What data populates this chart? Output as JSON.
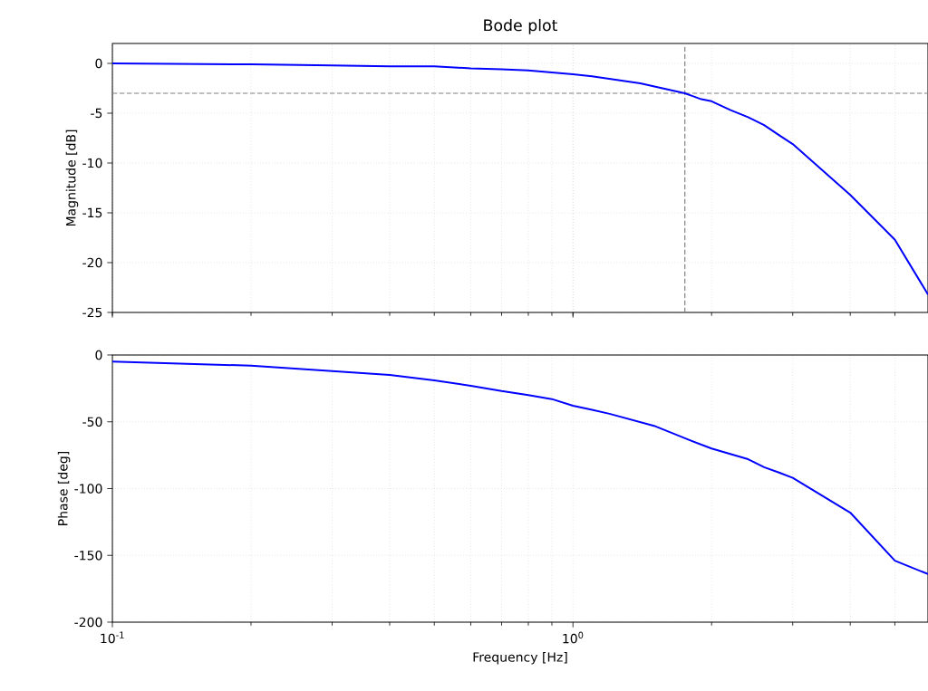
{
  "chart_data": [
    {
      "type": "line",
      "title": "Bode plot",
      "ylabel": "Magnitude [dB]",
      "log": "x",
      "grid": true,
      "tick_labels": "y",
      "xlim": [
        0.1,
        5.9
      ],
      "ylim": [
        -25,
        2
      ],
      "yticks": [
        0,
        -5,
        -10,
        -15,
        -20,
        -25
      ],
      "x": [
        0.1,
        0.2,
        0.3,
        0.4,
        0.5,
        0.6,
        0.7,
        0.8,
        0.9,
        1.0,
        1.1,
        1.4,
        1.75,
        1.9,
        2.0,
        2.2,
        2.4,
        2.6,
        2.8,
        3.0,
        4.0,
        5.0,
        5.9
      ],
      "values": [
        0,
        -0.1,
        -0.2,
        -0.3,
        -0.3,
        -0.5,
        -0.6,
        -0.7,
        -0.9,
        -1.1,
        -1.3,
        -2.0,
        -3.0,
        -3.6,
        -3.8,
        -4.7,
        -5.4,
        -6.2,
        -7.2,
        -8.1,
        -13.2,
        -17.7,
        -23.2
      ],
      "color": "#0000ff",
      "ref_lines": [
        {
          "axis": "y",
          "value": -3,
          "color": "#808080",
          "line_style": "dashed"
        },
        {
          "axis": "x",
          "value": 1.75,
          "color": "#808080",
          "line_style": "dashed"
        }
      ]
    },
    {
      "type": "line",
      "ylabel": "Phase [deg]",
      "xlabel": "Frequency [Hz]",
      "log": "x",
      "grid": true,
      "xlim": [
        0.1,
        5.9
      ],
      "xticks": [
        {
          "value": 0.1,
          "label": "10$^{-1}$"
        },
        {
          "value": 1,
          "label": "10$^{0}$"
        }
      ],
      "ylim": [
        -200,
        0
      ],
      "yticks": [
        0,
        -50,
        -100,
        -150,
        -200
      ],
      "x": [
        0.1,
        0.2,
        0.3,
        0.4,
        0.5,
        0.6,
        0.7,
        0.8,
        0.9,
        1.0,
        1.1,
        1.2,
        1.5,
        1.8,
        2.0,
        2.4,
        2.6,
        2.8,
        3.0,
        4.0,
        5.0,
        5.9
      ],
      "values": [
        -5,
        -8,
        -12,
        -15,
        -19,
        -23,
        -27,
        -30,
        -33,
        -38,
        -41,
        -44,
        -53,
        -64,
        -70,
        -78,
        -84,
        -88,
        -92,
        -118,
        -154,
        -164
      ],
      "color": "#0000ff"
    }
  ]
}
